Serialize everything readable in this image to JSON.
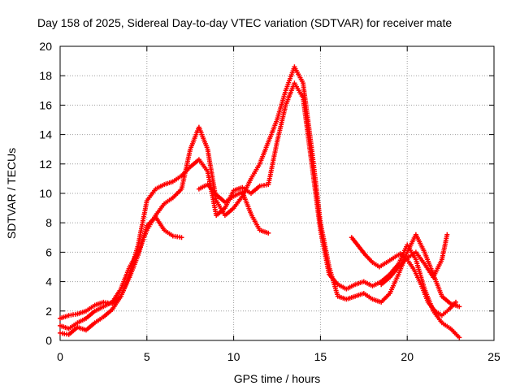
{
  "chart_data": {
    "type": "line",
    "title": "Day 158 of 2025, Sidereal Day-to-day VTEC variation (SDTVAR) for receiver mate",
    "xlabel": "GPS time / hours",
    "ylabel": "SDTVAR / TECUs",
    "xlim": [
      0,
      25
    ],
    "ylim": [
      0,
      20
    ],
    "xticks": [
      0,
      5,
      10,
      15,
      20,
      25
    ],
    "yticks": [
      0,
      2,
      4,
      6,
      8,
      10,
      12,
      14,
      16,
      18,
      20
    ],
    "grid": true,
    "marker": "plus",
    "color": "#ff0000",
    "series": [
      {
        "name": "trace-1",
        "x": [
          0,
          0.5,
          1,
          1.5,
          2,
          2.5,
          3,
          3.5,
          4,
          4.5,
          5,
          5.5,
          6,
          6.5,
          7,
          7.5,
          8,
          8.5,
          9,
          9.5,
          10,
          10.5,
          11,
          11.5,
          12,
          12.5,
          13,
          13.5,
          14,
          14.5,
          15,
          15.5,
          16,
          16.5,
          17,
          17.5,
          18,
          18.5,
          19,
          19.5,
          20,
          20.5,
          21,
          21.5,
          22,
          22.5,
          23
        ],
        "y": [
          1.5,
          1.7,
          1.8,
          2.0,
          2.4,
          2.6,
          2.5,
          3.0,
          4.5,
          6.5,
          9.5,
          10.3,
          10.6,
          10.8,
          11.2,
          11.8,
          12.3,
          11.5,
          8.5,
          9.0,
          10.2,
          10.4,
          10.0,
          10.5,
          10.6,
          13.5,
          16.0,
          17.5,
          16.5,
          12.0,
          7.5,
          4.5,
          3.8,
          3.5,
          3.8,
          4.0,
          3.7,
          4.0,
          4.5,
          5.2,
          6.5,
          5.5,
          3.5,
          2.0,
          1.2,
          0.8,
          0.2
        ]
      },
      {
        "name": "trace-2",
        "x": [
          0,
          0.5,
          1,
          1.5,
          2,
          2.5,
          3,
          3.5,
          4,
          4.5,
          5,
          5.5,
          6,
          6.5,
          7,
          7.5,
          8,
          8.5,
          9,
          9.5,
          10,
          10.5,
          11,
          11.5,
          12,
          12.5,
          13,
          13.5,
          14,
          14.5,
          15,
          15.5,
          16,
          16.5,
          17,
          17.5,
          18,
          18.5,
          19,
          19.5,
          20,
          20.5,
          21,
          21.5,
          22,
          22.5,
          23
        ],
        "y": [
          1.0,
          0.8,
          1.2,
          1.5,
          2.0,
          2.3,
          2.6,
          3.5,
          5.0,
          6.0,
          7.5,
          8.5,
          9.3,
          9.7,
          10.3,
          13.0,
          14.5,
          13.0,
          9.5,
          8.5,
          9.0,
          9.8,
          11.0,
          12.0,
          13.5,
          15.0,
          17.0,
          18.6,
          17.5,
          13.0,
          8.0,
          5.0,
          3.0,
          2.8,
          3.0,
          3.2,
          2.8,
          2.6,
          3.2,
          4.5,
          6.0,
          7.2,
          6.0,
          4.5,
          3.0,
          2.5,
          2.3
        ]
      },
      {
        "name": "trace-3",
        "x": [
          0,
          0.5,
          1,
          1.5,
          2,
          2.5,
          3,
          3.5,
          4,
          4.5,
          5,
          5.5,
          6,
          6.5,
          7
        ],
        "y": [
          0.5,
          0.4,
          0.9,
          0.7,
          1.2,
          1.6,
          2.1,
          3.0,
          4.3,
          5.8,
          7.8,
          8.4,
          7.5,
          7.1,
          7.0
        ]
      },
      {
        "name": "trace-4",
        "x": [
          8,
          8.5,
          9,
          9.5,
          10,
          10.5,
          11,
          11.5,
          12
        ],
        "y": [
          10.3,
          10.6,
          9.9,
          9.4,
          9.8,
          10.1,
          8.6,
          7.5,
          7.3
        ]
      },
      {
        "name": "trace-5",
        "x": [
          16.8,
          17.2,
          17.6,
          18,
          18.4,
          18.8,
          19.2,
          19.6,
          20,
          20.4,
          20.8,
          21.2,
          21.6,
          22,
          22.4,
          22.8
        ],
        "y": [
          7.0,
          6.4,
          5.8,
          5.3,
          5.0,
          5.3,
          5.6,
          5.9,
          5.5,
          4.8,
          3.8,
          2.6,
          2.0,
          1.7,
          2.1,
          2.6
        ]
      },
      {
        "name": "trace-6",
        "x": [
          18.5,
          19,
          19.5,
          20,
          20.5,
          21,
          21.5,
          22,
          22.3
        ],
        "y": [
          3.8,
          4.3,
          5.0,
          5.6,
          6.0,
          5.2,
          4.3,
          5.5,
          7.2
        ]
      }
    ]
  }
}
